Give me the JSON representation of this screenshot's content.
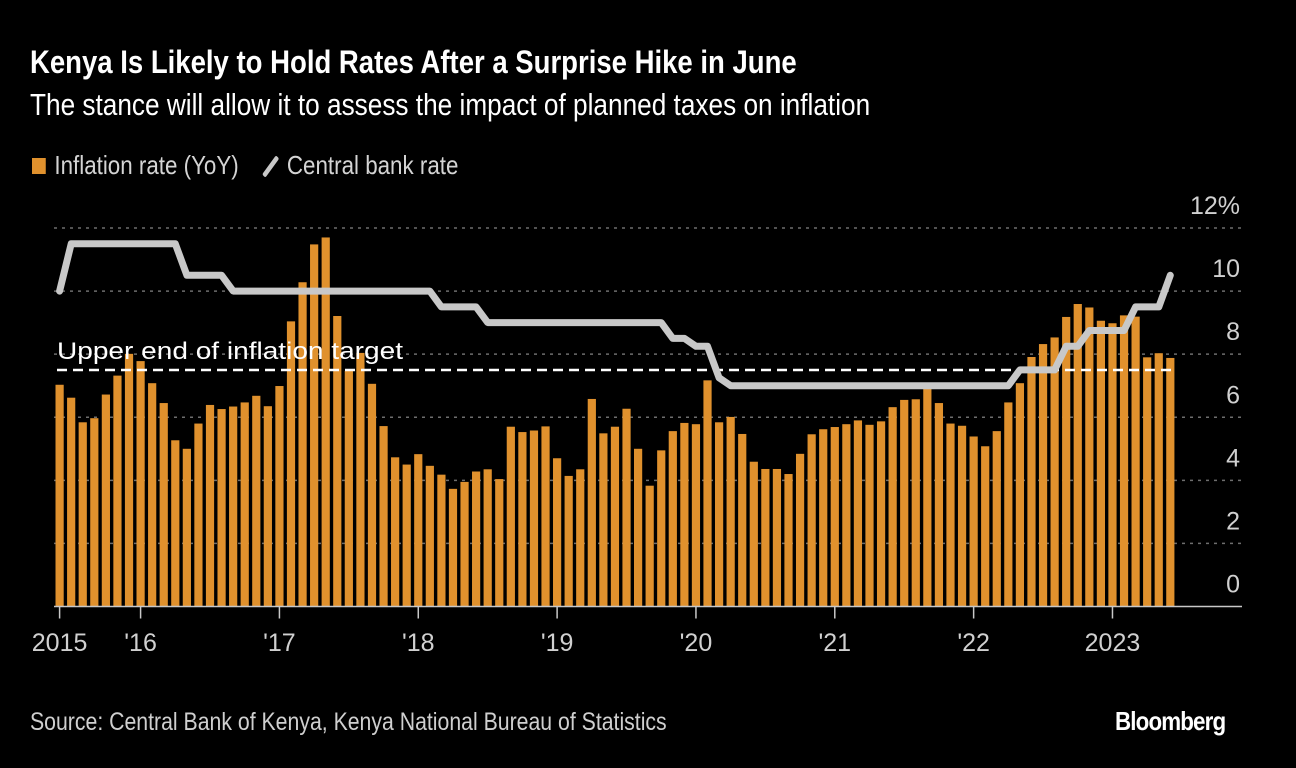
{
  "header": {
    "title": "Kenya Is Likely to Hold Rates After a Surprise Hike in June",
    "subtitle": "The stance will allow it to assess the impact of planned taxes on inflation"
  },
  "legend": {
    "items": [
      {
        "label": "Inflation rate (YoY)",
        "type": "bar",
        "color": "#e0912d"
      },
      {
        "label": "Central bank rate",
        "type": "line",
        "color": "#c8c8c8"
      }
    ]
  },
  "footer": {
    "source": "Source: Central Bank of Kenya, Kenya National Bureau of Statistics",
    "brand": "Bloomberg"
  },
  "chart_data": {
    "type": "bar+line",
    "title": "Kenya Is Likely to Hold Rates After a Surprise Hike in June",
    "subtitle": "The stance will allow it to assess the impact of planned taxes on inflation",
    "xlabel": "",
    "ylabel": "",
    "ylim": [
      0,
      12
    ],
    "y_ticks": [
      0,
      2,
      4,
      6,
      8,
      10,
      12
    ],
    "y_tick_labels": [
      "0",
      "2",
      "4",
      "6",
      "8",
      "10",
      "12%"
    ],
    "y_axis_position": "right",
    "grid": true,
    "legend_position": "top-left",
    "x_start": "2015-06",
    "x_end": "2023-06",
    "x_ticks": [
      {
        "month": "2015-06",
        "label": "2015"
      },
      {
        "month": "2016-01",
        "label": "'16"
      },
      {
        "month": "2017-01",
        "label": "'17"
      },
      {
        "month": "2018-01",
        "label": "'18"
      },
      {
        "month": "2019-01",
        "label": "'19"
      },
      {
        "month": "2020-01",
        "label": "'20"
      },
      {
        "month": "2021-01",
        "label": "'21"
      },
      {
        "month": "2022-01",
        "label": "'22"
      },
      {
        "month": "2023-01",
        "label": "2023"
      }
    ],
    "series": [
      {
        "name": "Inflation rate (YoY)",
        "type": "bar",
        "color": "#e0912d",
        "values": [
          7.03,
          6.62,
          5.84,
          5.97,
          6.72,
          7.32,
          8.01,
          7.78,
          7.08,
          6.45,
          5.27,
          5.0,
          5.8,
          6.39,
          6.26,
          6.34,
          6.47,
          6.68,
          6.35,
          6.99,
          9.04,
          10.28,
          11.48,
          11.7,
          9.21,
          7.47,
          8.04,
          7.06,
          5.72,
          4.73,
          4.5,
          4.83,
          4.46,
          4.18,
          3.73,
          3.95,
          4.28,
          4.35,
          4.04,
          5.7,
          5.53,
          5.58,
          5.71,
          4.7,
          4.14,
          4.35,
          6.58,
          5.49,
          5.7,
          6.27,
          5.0,
          3.83,
          4.95,
          5.56,
          5.82,
          5.78,
          7.17,
          5.84,
          6.01,
          5.47,
          4.59,
          4.36,
          4.36,
          4.2,
          4.84,
          5.46,
          5.62,
          5.69,
          5.78,
          5.9,
          5.76,
          5.87,
          6.32,
          6.55,
          6.57,
          6.91,
          6.45,
          5.8,
          5.73,
          5.39,
          5.08,
          5.56,
          6.47,
          7.08,
          7.91,
          8.32,
          8.53,
          9.18,
          9.59,
          9.48,
          9.06,
          8.98,
          9.23,
          9.19,
          7.9,
          8.03,
          7.88
        ]
      },
      {
        "name": "Central bank rate",
        "type": "line",
        "color": "#c8c8c8",
        "values": [
          10.0,
          11.5,
          11.5,
          11.5,
          11.5,
          11.5,
          11.5,
          11.5,
          11.5,
          11.5,
          11.5,
          10.5,
          10.5,
          10.5,
          10.5,
          10.0,
          10.0,
          10.0,
          10.0,
          10.0,
          10.0,
          10.0,
          10.0,
          10.0,
          10.0,
          10.0,
          10.0,
          10.0,
          10.0,
          10.0,
          10.0,
          10.0,
          10.0,
          9.5,
          9.5,
          9.5,
          9.5,
          9.0,
          9.0,
          9.0,
          9.0,
          9.0,
          9.0,
          9.0,
          9.0,
          9.0,
          9.0,
          9.0,
          9.0,
          9.0,
          9.0,
          9.0,
          9.0,
          8.5,
          8.5,
          8.25,
          8.25,
          7.25,
          7.0,
          7.0,
          7.0,
          7.0,
          7.0,
          7.0,
          7.0,
          7.0,
          7.0,
          7.0,
          7.0,
          7.0,
          7.0,
          7.0,
          7.0,
          7.0,
          7.0,
          7.0,
          7.0,
          7.0,
          7.0,
          7.0,
          7.0,
          7.0,
          7.0,
          7.5,
          7.5,
          7.5,
          7.5,
          8.25,
          8.25,
          8.75,
          8.75,
          8.75,
          8.75,
          9.5,
          9.5,
          9.5,
          10.5
        ]
      }
    ],
    "annotations": [
      {
        "type": "hline",
        "value": 7.5,
        "style": "dashed",
        "color": "#ffffff",
        "label": "Upper end of inflation target"
      }
    ]
  }
}
